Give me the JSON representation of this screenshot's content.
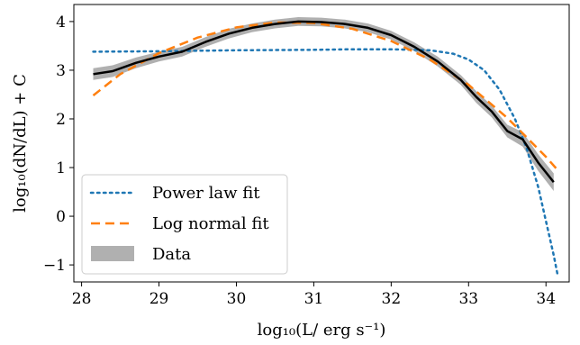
{
  "chart_data": {
    "type": "line",
    "xlabel": "log₁₀(L/ erg s⁻¹)",
    "ylabel": "log₁₀(dN/dL) + C",
    "xlim": [
      27.9,
      34.3
    ],
    "ylim": [
      -1.35,
      4.35
    ],
    "xticks": [
      28,
      29,
      30,
      31,
      32,
      33,
      34
    ],
    "yticks": [
      -1,
      0,
      1,
      2,
      3,
      4
    ],
    "xtick_labels": [
      "28",
      "29",
      "30",
      "31",
      "32",
      "33",
      "34"
    ],
    "ytick_labels": [
      "−1",
      "0",
      "1",
      "2",
      "3",
      "4"
    ],
    "grid": false,
    "legend_position": "lower-left",
    "series": [
      {
        "name": "Data",
        "kind": "band",
        "color": "#b0b0b0",
        "line_color": "#000000",
        "x": [
          28.15,
          28.4,
          28.7,
          29.0,
          29.3,
          29.6,
          29.9,
          30.2,
          30.5,
          30.8,
          31.1,
          31.4,
          31.7,
          32.0,
          32.3,
          32.6,
          32.9,
          33.1,
          33.3,
          33.5,
          33.7,
          33.9,
          34.1
        ],
        "y": [
          2.92,
          2.98,
          3.15,
          3.28,
          3.38,
          3.58,
          3.75,
          3.87,
          3.95,
          4.0,
          3.99,
          3.95,
          3.87,
          3.72,
          3.48,
          3.18,
          2.8,
          2.45,
          2.15,
          1.75,
          1.58,
          1.1,
          0.7
        ],
        "lower": [
          2.8,
          2.86,
          3.04,
          3.18,
          3.28,
          3.48,
          3.65,
          3.78,
          3.86,
          3.91,
          3.9,
          3.86,
          3.78,
          3.63,
          3.39,
          3.08,
          2.7,
          2.33,
          2.03,
          1.62,
          1.43,
          0.93,
          0.52
        ],
        "upper": [
          3.04,
          3.1,
          3.26,
          3.38,
          3.48,
          3.68,
          3.85,
          3.96,
          4.04,
          4.09,
          4.08,
          4.04,
          3.96,
          3.81,
          3.57,
          3.28,
          2.9,
          2.57,
          2.27,
          1.88,
          1.73,
          1.27,
          0.88
        ]
      },
      {
        "name": "Power law fit",
        "kind": "line",
        "style": "dotted",
        "color": "#1f77b4",
        "x": [
          28.15,
          29.0,
          30.0,
          31.0,
          31.5,
          32.0,
          32.5,
          32.8,
          33.0,
          33.2,
          33.4,
          33.6,
          33.75,
          33.9,
          34.0,
          34.1,
          34.15
        ],
        "y": [
          3.38,
          3.39,
          3.41,
          3.42,
          3.43,
          3.43,
          3.41,
          3.34,
          3.22,
          3.0,
          2.6,
          2.0,
          1.4,
          0.6,
          -0.1,
          -0.8,
          -1.2
        ]
      },
      {
        "name": "Log normal fit",
        "kind": "line",
        "style": "dashed",
        "color": "#ff7f0e",
        "x": [
          28.15,
          28.5,
          29.0,
          29.5,
          30.0,
          30.5,
          31.0,
          31.5,
          32.0,
          32.5,
          33.0,
          33.5,
          34.0,
          34.15
        ],
        "y": [
          2.48,
          2.92,
          3.35,
          3.67,
          3.88,
          3.98,
          3.97,
          3.85,
          3.6,
          3.22,
          2.7,
          2.02,
          1.22,
          0.95
        ]
      }
    ]
  }
}
